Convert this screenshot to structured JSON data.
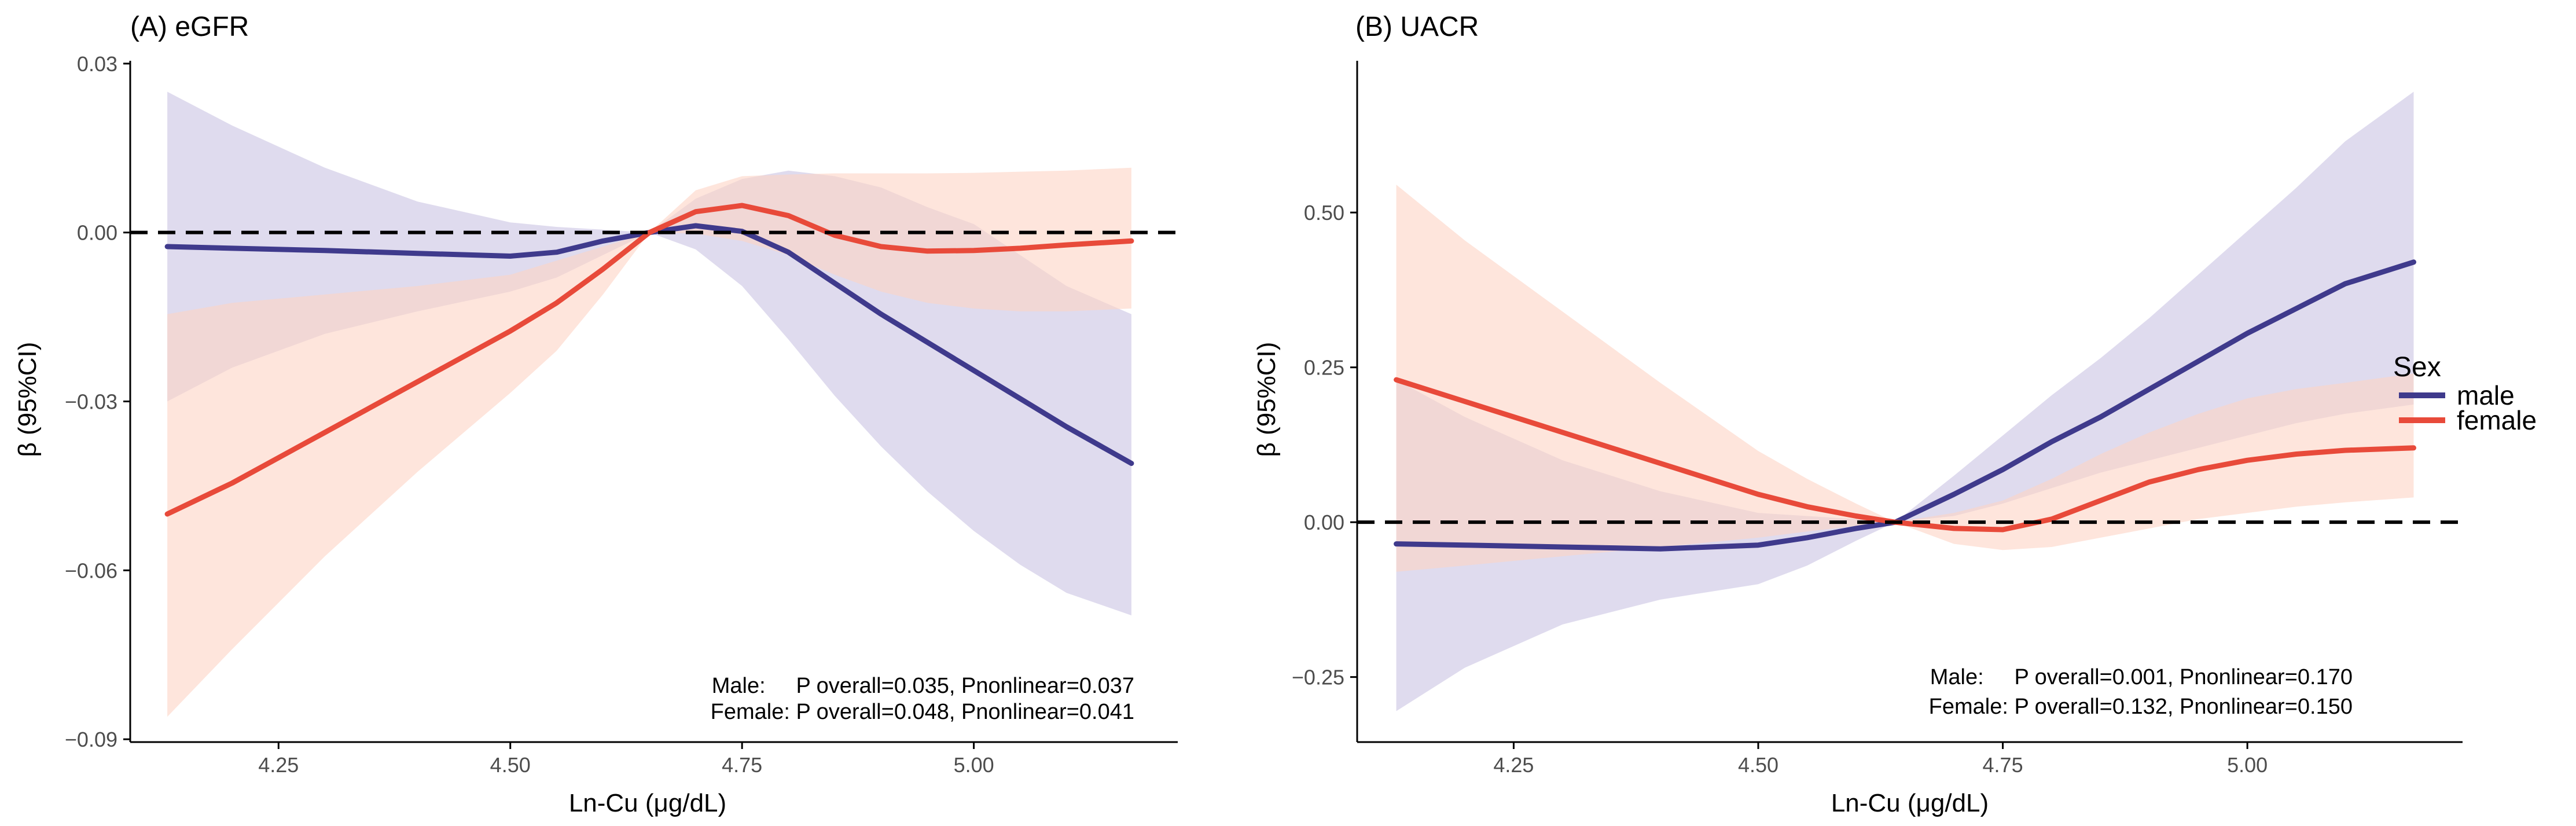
{
  "colors": {
    "male": "#3F3A8C",
    "female": "#E84A3A",
    "male_band": "#C9C3E3",
    "female_band": "#FDD3C4",
    "reference_line": "#000000",
    "axis": "#000000"
  },
  "legend": {
    "title": "Sex",
    "items": [
      {
        "label": "male",
        "series": "male"
      },
      {
        "label": "female",
        "series": "female"
      }
    ]
  },
  "chart_data": [
    {
      "type": "line",
      "title": "(A) eGFR",
      "xlabel": "Ln-Cu (μg/dL)",
      "ylabel": "β (95%CI)",
      "xlim": [
        4.09,
        5.22
      ],
      "ylim": [
        -0.0905,
        0.0305
      ],
      "xticks": [
        4.25,
        4.5,
        4.75,
        5.0
      ],
      "xtick_labels": [
        "4.25",
        "4.50",
        "4.75",
        "5.00"
      ],
      "yticks": [
        -0.09,
        -0.06,
        -0.03,
        0.0,
        0.03
      ],
      "ytick_labels": [
        "−0.09",
        "−0.06",
        "−0.03",
        "0.00",
        "0.03"
      ],
      "reference_y": 0.0,
      "grid": false,
      "x": [
        4.13,
        4.2,
        4.3,
        4.4,
        4.5,
        4.55,
        4.6,
        4.65,
        4.7,
        4.75,
        4.8,
        4.85,
        4.9,
        4.95,
        5.0,
        5.05,
        5.1,
        5.17
      ],
      "series": [
        {
          "name": "male",
          "values": [
            -0.0025,
            -0.0028,
            -0.0032,
            -0.0037,
            -0.0042,
            -0.0035,
            -0.0015,
            0.0,
            0.0012,
            0.0002,
            -0.0035,
            -0.009,
            -0.0145,
            -0.0195,
            -0.0245,
            -0.0295,
            -0.0345,
            -0.041
          ],
          "lower": [
            -0.03,
            -0.024,
            -0.018,
            -0.014,
            -0.0105,
            -0.008,
            -0.004,
            0.0,
            -0.003,
            -0.0095,
            -0.019,
            -0.029,
            -0.038,
            -0.046,
            -0.053,
            -0.059,
            -0.064,
            -0.068
          ],
          "upper": [
            0.025,
            0.019,
            0.0115,
            0.0055,
            0.0018,
            0.001,
            0.0005,
            0.0,
            0.006,
            0.0095,
            0.011,
            0.01,
            0.008,
            0.0045,
            0.0015,
            -0.004,
            -0.0095,
            -0.0145
          ]
        },
        {
          "name": "female",
          "values": [
            -0.05,
            -0.0445,
            -0.0355,
            -0.0265,
            -0.0175,
            -0.0125,
            -0.0065,
            0.0,
            0.0037,
            0.0048,
            0.003,
            -0.0005,
            -0.0025,
            -0.0033,
            -0.0032,
            -0.0028,
            -0.0022,
            -0.0015
          ],
          "lower": [
            -0.086,
            -0.074,
            -0.0575,
            -0.0425,
            -0.0285,
            -0.021,
            -0.011,
            0.0,
            -0.0002,
            -0.0015,
            -0.004,
            -0.0075,
            -0.0105,
            -0.0125,
            -0.0135,
            -0.014,
            -0.014,
            -0.0135
          ],
          "upper": [
            -0.0145,
            -0.0125,
            -0.011,
            -0.0095,
            -0.0075,
            -0.005,
            -0.0025,
            0.0,
            0.0075,
            0.01,
            0.0103,
            0.0105,
            0.0105,
            0.0105,
            0.0106,
            0.0108,
            0.011,
            0.0115
          ]
        }
      ],
      "annotation": [
        "Male:     P overall=0.035, Pnonlinear=0.037",
        "Female: P overall=0.048, Pnonlinear=0.041"
      ]
    },
    {
      "type": "line",
      "title": "(B) UACR",
      "xlabel": "Ln-Cu (μg/dL)",
      "ylabel": "β (95%CI)",
      "xlim": [
        4.09,
        5.22
      ],
      "ylim": [
        -0.355,
        0.745
      ],
      "xticks": [
        4.25,
        4.5,
        4.75,
        5.0
      ],
      "xtick_labels": [
        "4.25",
        "4.50",
        "4.75",
        "5.00"
      ],
      "yticks": [
        -0.25,
        0.0,
        0.25,
        0.5
      ],
      "ytick_labels": [
        "−0.25",
        "0.00",
        "0.25",
        "0.50"
      ],
      "reference_y": 0.0,
      "grid": false,
      "x": [
        4.13,
        4.2,
        4.3,
        4.4,
        4.5,
        4.55,
        4.6,
        4.64,
        4.7,
        4.75,
        4.8,
        4.85,
        4.9,
        4.95,
        5.0,
        5.05,
        5.1,
        5.17
      ],
      "series": [
        {
          "name": "male",
          "values": [
            -0.035,
            -0.037,
            -0.04,
            -0.043,
            -0.037,
            -0.025,
            -0.01,
            0.0,
            0.045,
            0.085,
            0.13,
            0.17,
            0.215,
            0.26,
            0.305,
            0.345,
            0.385,
            0.42
          ],
          "lower": [
            -0.305,
            -0.235,
            -0.165,
            -0.125,
            -0.1,
            -0.07,
            -0.03,
            0.0,
            0.01,
            0.03,
            0.055,
            0.08,
            0.1,
            0.12,
            0.14,
            0.16,
            0.175,
            0.19
          ],
          "upper": [
            0.23,
            0.17,
            0.1,
            0.05,
            0.015,
            0.01,
            0.005,
            0.0,
            0.075,
            0.14,
            0.205,
            0.265,
            0.33,
            0.4,
            0.47,
            0.54,
            0.615,
            0.695
          ]
        },
        {
          "name": "female",
          "values": [
            0.23,
            0.195,
            0.145,
            0.095,
            0.045,
            0.025,
            0.01,
            0.0,
            -0.01,
            -0.012,
            0.005,
            0.035,
            0.065,
            0.085,
            0.1,
            0.11,
            0.116,
            0.12
          ],
          "lower": [
            -0.08,
            -0.07,
            -0.055,
            -0.04,
            -0.025,
            -0.015,
            -0.006,
            0.0,
            -0.035,
            -0.045,
            -0.04,
            -0.025,
            -0.01,
            0.005,
            0.015,
            0.025,
            0.032,
            0.04
          ],
          "upper": [
            0.545,
            0.455,
            0.34,
            0.225,
            0.115,
            0.07,
            0.03,
            0.0,
            0.015,
            0.035,
            0.07,
            0.11,
            0.145,
            0.175,
            0.2,
            0.215,
            0.225,
            0.24
          ]
        }
      ],
      "annotation": [
        "Male:     P overall=0.001, Pnonlinear=0.170",
        "Female: P overall=0.132, Pnonlinear=0.150"
      ]
    }
  ]
}
